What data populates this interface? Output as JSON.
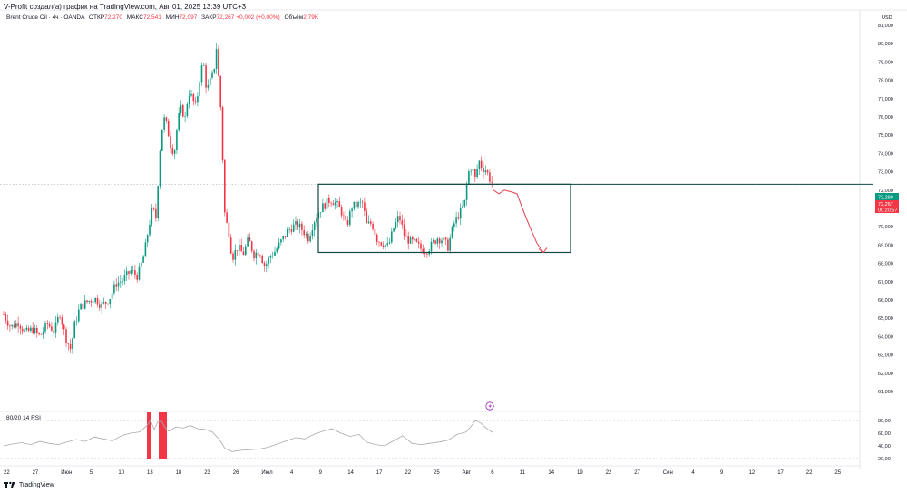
{
  "header": {
    "title": "V-Profit создал(а) график на TradingView.com, Авг 01, 2025 13:39 UTC+3"
  },
  "legend": {
    "symbol": "Brent Crude Oil · 4ч · OANDA",
    "open_label": "ОТКР",
    "open": "72,270",
    "high_label": "МАКС",
    "high": "72,541",
    "low_label": "МИН",
    "low": "72,097",
    "close_label": "ЗАКР",
    "close": "72,267",
    "change": "+0,002 (+0,00%)",
    "volume_label": "Объём",
    "volume": "2,79K"
  },
  "currency": "USD",
  "price_badges": {
    "upper": "72,289",
    "lower": "72,267",
    "timer": "00:20:57"
  },
  "rsi": {
    "label": "80/20 14 RSI"
  },
  "footer": {
    "brand": "TradingView"
  },
  "event_icon": "lightning-icon",
  "colors": {
    "up": "#089981",
    "down": "#f23645",
    "rsi": "#aaaaaa",
    "box": "#124a43",
    "arrow": "#e0525c"
  },
  "chart_data": {
    "type": "candlestick",
    "y_ticks": [
      "81,000",
      "80,000",
      "79,000",
      "78,000",
      "77,000",
      "76,000",
      "75,000",
      "74,000",
      "73,000",
      "72,000",
      "71,000",
      "70,000",
      "69,000",
      "68,000",
      "67,000",
      "66,000",
      "65,000",
      "64,000",
      "63,000",
      "62,000",
      "61,000"
    ],
    "rsi_ticks": [
      "80,00",
      "60,00",
      "40,00",
      "20,00"
    ],
    "x_ticks": [
      "22",
      "27",
      "Июн",
      "5",
      "10",
      "13",
      "18",
      "23",
      "26",
      "Июл",
      "4",
      "9",
      "14",
      "17",
      "22",
      "25",
      "Авг",
      "6",
      "11",
      "14",
      "19",
      "22",
      "27",
      "Сен",
      "4",
      "9",
      "12",
      "17",
      "22",
      "25"
    ],
    "ylim": [
      61,
      82
    ],
    "rsi_ylim": [
      0,
      100
    ],
    "price_path": [
      [
        0,
        65.2
      ],
      [
        8,
        64.5
      ],
      [
        16,
        64.8
      ],
      [
        24,
        64.2
      ],
      [
        32,
        64.4
      ],
      [
        40,
        64.0
      ],
      [
        48,
        64.7
      ],
      [
        56,
        64.3
      ],
      [
        62,
        65.3
      ],
      [
        68,
        64.0
      ],
      [
        74,
        63.3
      ],
      [
        78,
        64.6
      ],
      [
        84,
        65.6
      ],
      [
        92,
        65.9
      ],
      [
        100,
        66.1
      ],
      [
        108,
        65.7
      ],
      [
        116,
        66.0
      ],
      [
        124,
        66.9
      ],
      [
        132,
        67.1
      ],
      [
        140,
        67.6
      ],
      [
        148,
        67.3
      ],
      [
        155,
        68.5
      ],
      [
        160,
        70.0
      ],
      [
        164,
        71.0
      ],
      [
        168,
        70.5
      ],
      [
        172,
        74.0
      ],
      [
        176,
        76.0
      ],
      [
        180,
        75.5
      ],
      [
        184,
        74.5
      ],
      [
        188,
        74.0
      ],
      [
        192,
        75.8
      ],
      [
        196,
        76.5
      ],
      [
        200,
        75.9
      ],
      [
        204,
        77.4
      ],
      [
        208,
        77.0
      ],
      [
        212,
        76.5
      ],
      [
        216,
        78.0
      ],
      [
        220,
        79.1
      ],
      [
        224,
        77.4
      ],
      [
        228,
        78.0
      ],
      [
        232,
        78.5
      ],
      [
        234,
        80.2
      ],
      [
        236,
        78.8
      ],
      [
        240,
        76.0
      ],
      [
        242,
        73.0
      ],
      [
        244,
        70.5
      ],
      [
        248,
        69.8
      ],
      [
        252,
        68.3
      ],
      [
        258,
        68.9
      ],
      [
        264,
        68.5
      ],
      [
        270,
        69.3
      ],
      [
        276,
        68.5
      ],
      [
        282,
        68.7
      ],
      [
        288,
        67.8
      ],
      [
        294,
        68.4
      ],
      [
        300,
        68.7
      ],
      [
        306,
        69.2
      ],
      [
        312,
        69.7
      ],
      [
        318,
        70.0
      ],
      [
        324,
        70.1
      ],
      [
        330,
        69.8
      ],
      [
        336,
        69.4
      ],
      [
        342,
        70.3
      ],
      [
        348,
        70.9
      ],
      [
        354,
        71.2
      ],
      [
        360,
        71.5
      ],
      [
        366,
        71.3
      ],
      [
        372,
        70.9
      ],
      [
        378,
        70.0
      ],
      [
        384,
        71.1
      ],
      [
        390,
        71.2
      ],
      [
        396,
        71.3
      ],
      [
        400,
        70.1
      ],
      [
        406,
        70.2
      ],
      [
        412,
        69.3
      ],
      [
        418,
        69.1
      ],
      [
        424,
        68.9
      ],
      [
        430,
        69.9
      ],
      [
        436,
        70.6
      ],
      [
        442,
        69.5
      ],
      [
        448,
        69.2
      ],
      [
        454,
        69.1
      ],
      [
        460,
        68.8
      ],
      [
        466,
        68.7
      ],
      [
        472,
        69.0
      ],
      [
        478,
        69.4
      ],
      [
        484,
        69.3
      ],
      [
        490,
        68.9
      ],
      [
        496,
        70.1
      ],
      [
        502,
        70.7
      ],
      [
        508,
        71.2
      ],
      [
        512,
        72.9
      ],
      [
        516,
        73.3
      ],
      [
        520,
        72.6
      ],
      [
        524,
        73.6
      ],
      [
        528,
        73.2
      ],
      [
        532,
        73.1
      ],
      [
        536,
        72.6
      ],
      [
        540,
        72.267
      ]
    ],
    "box": {
      "x_from": "Июл 8",
      "x_to": "Авг 13",
      "y_low": 68.6,
      "y_high": 72.32
    },
    "resistance_level": 72.32,
    "projection_path": [
      [
        540,
        72.0
      ],
      [
        546,
        71.8
      ],
      [
        552,
        72.0
      ],
      [
        560,
        71.9
      ],
      [
        566,
        71.8
      ],
      [
        572,
        71.0
      ],
      [
        580,
        70.0
      ],
      [
        588,
        69.1
      ],
      [
        595,
        68.6
      ]
    ],
    "rsi_path": [
      [
        0,
        40
      ],
      [
        10,
        43
      ],
      [
        20,
        45
      ],
      [
        30,
        42
      ],
      [
        40,
        47
      ],
      [
        50,
        44
      ],
      [
        60,
        42
      ],
      [
        70,
        46
      ],
      [
        80,
        50
      ],
      [
        90,
        47
      ],
      [
        100,
        54
      ],
      [
        110,
        51
      ],
      [
        120,
        48
      ],
      [
        130,
        56
      ],
      [
        140,
        60
      ],
      [
        150,
        62
      ],
      [
        158,
        72
      ],
      [
        162,
        80
      ],
      [
        166,
        66
      ],
      [
        170,
        78
      ],
      [
        174,
        79
      ],
      [
        178,
        69
      ],
      [
        182,
        63
      ],
      [
        190,
        70
      ],
      [
        198,
        68
      ],
      [
        206,
        72
      ],
      [
        214,
        67
      ],
      [
        222,
        66
      ],
      [
        230,
        62
      ],
      [
        238,
        50
      ],
      [
        244,
        36
      ],
      [
        252,
        31
      ],
      [
        262,
        33
      ],
      [
        272,
        34
      ],
      [
        282,
        35
      ],
      [
        292,
        38
      ],
      [
        302,
        43
      ],
      [
        312,
        48
      ],
      [
        322,
        53
      ],
      [
        332,
        51
      ],
      [
        342,
        58
      ],
      [
        352,
        63
      ],
      [
        362,
        67
      ],
      [
        372,
        60
      ],
      [
        382,
        55
      ],
      [
        392,
        58
      ],
      [
        400,
        46
      ],
      [
        410,
        42
      ],
      [
        420,
        40
      ],
      [
        430,
        48
      ],
      [
        440,
        56
      ],
      [
        450,
        44
      ],
      [
        460,
        42
      ],
      [
        470,
        44
      ],
      [
        480,
        46
      ],
      [
        490,
        49
      ],
      [
        500,
        58
      ],
      [
        510,
        62
      ],
      [
        516,
        72
      ],
      [
        520,
        80
      ],
      [
        526,
        76
      ],
      [
        532,
        68
      ],
      [
        538,
        62
      ],
      [
        540,
        61
      ]
    ],
    "rsi_spikes_red": [
      [
        158,
        162
      ],
      [
        171,
        180
      ]
    ]
  }
}
